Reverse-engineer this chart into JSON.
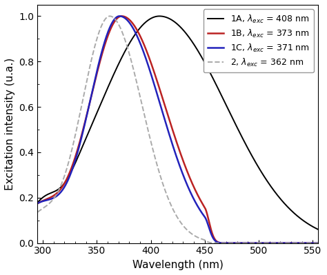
{
  "xlabel": "Wavelength (nm)",
  "ylabel": "Excitation intensity (u.a.)",
  "xlim": [
    295,
    555
  ],
  "ylim": [
    0.0,
    1.05
  ],
  "xticks": [
    300,
    350,
    400,
    450,
    500,
    550
  ],
  "yticks": [
    0.0,
    0.2,
    0.4,
    0.6,
    0.8,
    1.0
  ],
  "legend_loc": "upper right",
  "background_color": "#ffffff",
  "font_size": 11,
  "tick_labelsize": 10,
  "colors": [
    "#000000",
    "#bb2222",
    "#2222bb",
    "#aaaaaa"
  ],
  "linestyles": [
    "solid",
    "solid",
    "solid",
    "dashed"
  ],
  "linewidths": [
    1.4,
    1.8,
    1.8,
    1.4
  ],
  "legend_labels": [
    "1A, $\\lambda_{exc}$ = 408 nm",
    "1B, $\\lambda_{exc}$ = 373 nm",
    "1C, $\\lambda_{exc}$ = 371 nm",
    "2, $\\lambda_{exc}$ = 362 nm"
  ]
}
